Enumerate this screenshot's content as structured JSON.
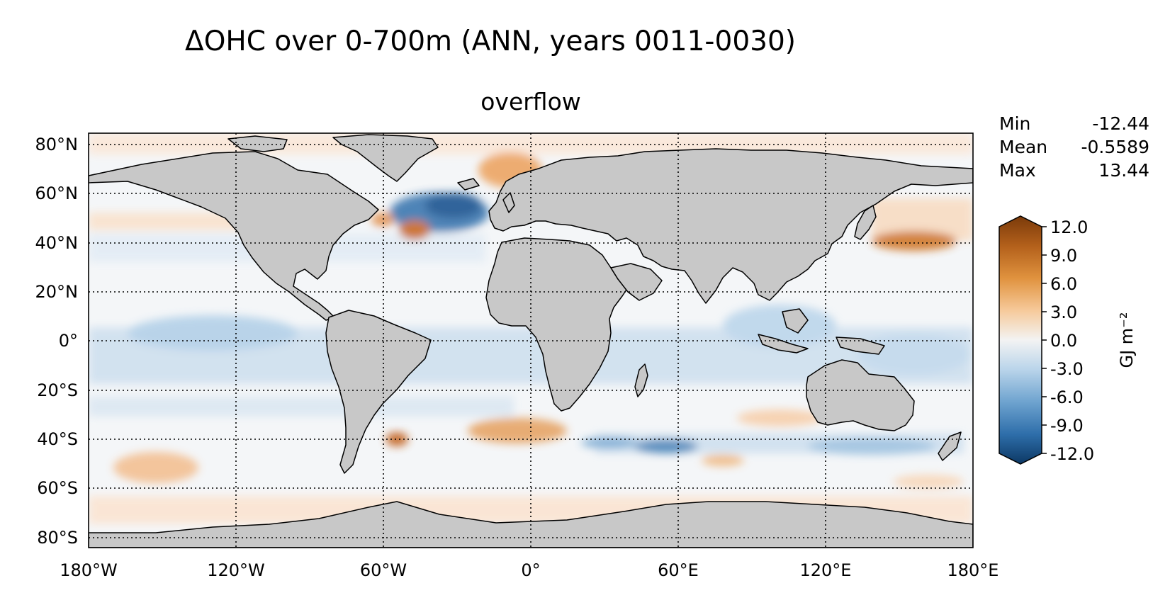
{
  "title": "ΔOHC over 0-700m (ANN, years 0011-0030)",
  "subtitle": "overflow",
  "stats": [
    {
      "label": "Min",
      "value": "-12.44"
    },
    {
      "label": "Mean",
      "value": "-0.5589"
    },
    {
      "label": "Max",
      "value": "13.44"
    }
  ],
  "map": {
    "lon_labels": [
      "180°W",
      "120°W",
      "60°W",
      "0°",
      "60°E",
      "120°E",
      "180°E"
    ],
    "lat_labels": [
      "80°N",
      "60°N",
      "40°N",
      "20°N",
      "0°",
      "20°S",
      "40°S",
      "60°S",
      "80°S"
    ],
    "land_color": "#c8c8c8",
    "ocean_base_color": "#f4f6f8"
  },
  "colorbar": {
    "label": "GJ m⁻²",
    "ticks": [
      "12.0",
      "9.0",
      "6.0",
      "3.0",
      "0.0",
      "-3.0",
      "-6.0",
      "-9.0",
      "-12.0"
    ],
    "range": [
      -12,
      12
    ],
    "colors": {
      "max": "#7a3a0a",
      "min": "#0c3864"
    }
  }
}
